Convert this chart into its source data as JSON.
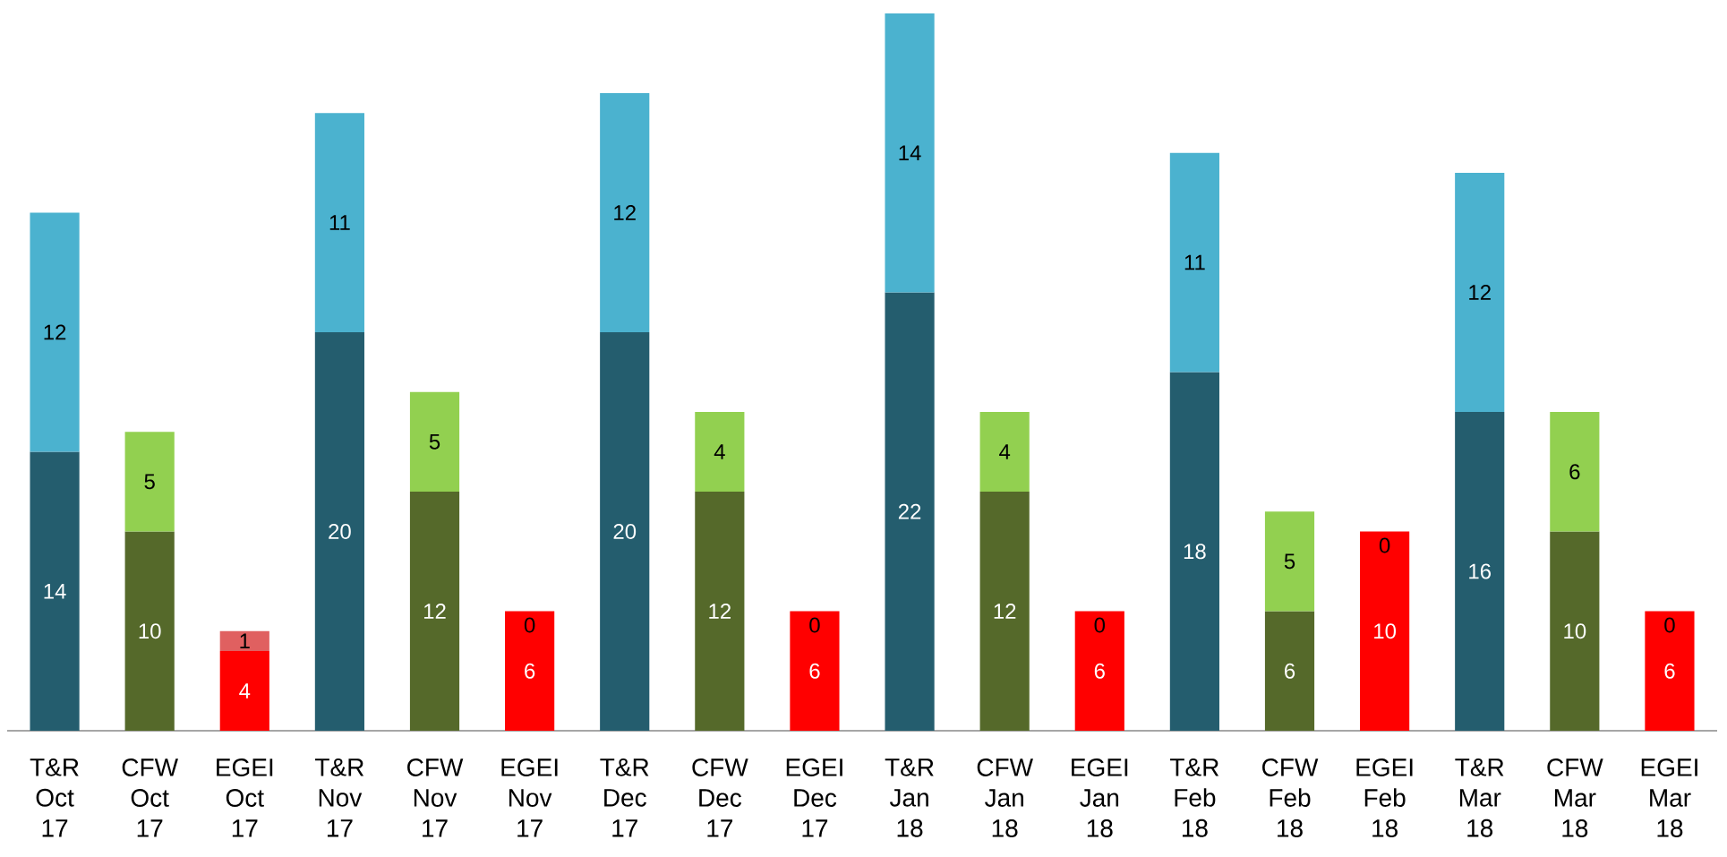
{
  "chart_data": {
    "type": "bar",
    "stacked": true,
    "data_labels": true,
    "categories": [
      "T&R Oct 17",
      "CFW Oct 17",
      "EGEI Oct 17",
      "T&R Nov 17",
      "CFW Nov 17",
      "EGEI Nov 17",
      "T&R Dec 17",
      "CFW Dec 17",
      "EGEI Dec 17",
      "T&R Jan 18",
      "CFW Jan 18",
      "EGEI Jan 18",
      "T&R Feb 18",
      "CFW Feb 18",
      "EGEI Feb 18",
      "T&R Mar 18",
      "CFW Mar 18",
      "EGEI Mar 18"
    ],
    "series": [
      {
        "values": [
          14,
          10,
          4,
          20,
          12,
          6,
          20,
          12,
          6,
          22,
          12,
          6,
          18,
          6,
          10,
          16,
          10,
          6
        ],
        "colors": [
          "#245d6e",
          "#55692a",
          "#ff0000",
          "#245d6e",
          "#55692a",
          "#ff0000",
          "#245d6e",
          "#55692a",
          "#ff0000",
          "#245d6e",
          "#55692a",
          "#ff0000",
          "#245d6e",
          "#55692a",
          "#ff0000",
          "#245d6e",
          "#55692a",
          "#ff0000"
        ]
      },
      {
        "values": [
          12,
          5,
          1,
          11,
          5,
          0,
          12,
          4,
          0,
          14,
          4,
          0,
          11,
          5,
          0,
          12,
          6,
          0
        ],
        "colors": [
          "#4bb2cf",
          "#92d050",
          "#e06060",
          "#4bb2cf",
          "#92d050",
          "#e06060",
          "#4bb2cf",
          "#92d050",
          "#e06060",
          "#4bb2cf",
          "#92d050",
          "#e06060",
          "#4bb2cf",
          "#92d050",
          "#e06060",
          "#4bb2cf",
          "#92d050",
          "#e06060"
        ]
      }
    ]
  }
}
